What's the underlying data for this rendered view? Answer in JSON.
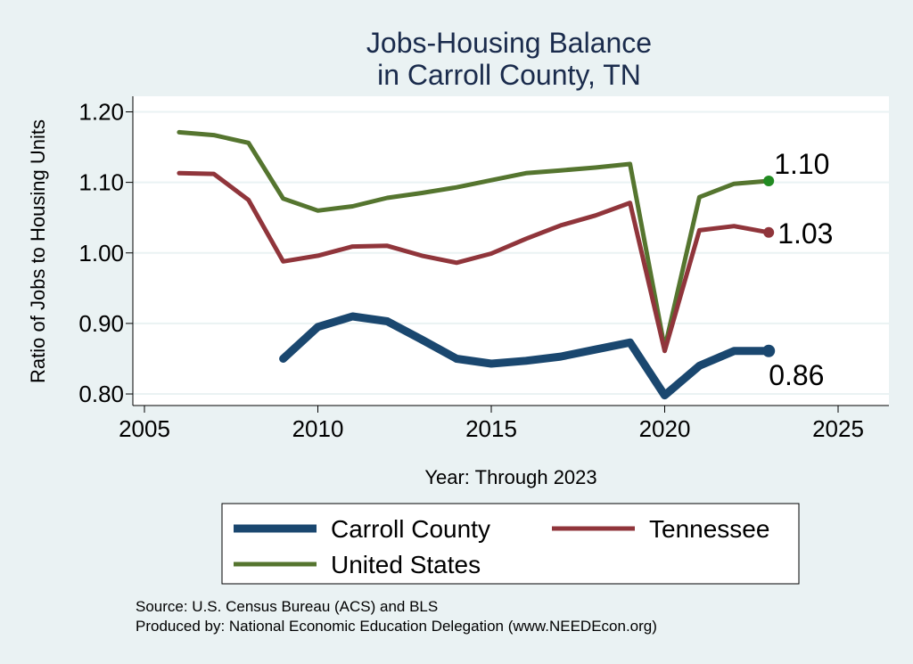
{
  "chart_data": {
    "type": "line",
    "title": [
      "Jobs-Housing Balance",
      "in Carroll County, TN"
    ],
    "xlabel": "Year: Through 2023",
    "ylabel": "Ratio of Jobs to Housing Units",
    "xlim": [
      2005,
      2025
    ],
    "ylim": [
      0.8,
      1.2
    ],
    "xticks": [
      2005,
      2010,
      2015,
      2020,
      2025
    ],
    "xtick_labels": [
      "2005",
      "2010",
      "2015",
      "2020",
      "2025"
    ],
    "yticks": [
      0.8,
      0.9,
      1.0,
      1.1,
      1.2
    ],
    "ytick_labels": [
      "0.80",
      "0.90",
      "1.00",
      "1.10",
      "1.20"
    ],
    "grid": "horizontal",
    "legend_position": "bottom",
    "series": [
      {
        "name": "Carroll County",
        "color": "#1a476f",
        "x": [
          2009,
          2010,
          2011,
          2012,
          2013,
          2014,
          2015,
          2016,
          2017,
          2018,
          2019,
          2020,
          2021,
          2022,
          2023
        ],
        "values": [
          0.85,
          0.895,
          0.91,
          0.903,
          0.877,
          0.85,
          0.843,
          0.847,
          0.853,
          0.863,
          0.873,
          0.798,
          0.84,
          0.861,
          0.861
        ],
        "end_label": "0.86"
      },
      {
        "name": "Tennessee",
        "color": "#90353b",
        "x": [
          2006,
          2007,
          2008,
          2009,
          2010,
          2011,
          2012,
          2013,
          2014,
          2015,
          2016,
          2017,
          2018,
          2019,
          2020,
          2021,
          2022,
          2023
        ],
        "values": [
          1.113,
          1.112,
          1.075,
          0.988,
          0.996,
          1.009,
          1.01,
          0.996,
          0.986,
          0.999,
          1.02,
          1.039,
          1.053,
          1.071,
          0.861,
          1.032,
          1.038,
          1.029
        ],
        "end_label": "1.03"
      },
      {
        "name": "United States",
        "color": "#55752f",
        "marker_color": "#228b22",
        "x": [
          2006,
          2007,
          2008,
          2009,
          2010,
          2011,
          2012,
          2013,
          2014,
          2015,
          2016,
          2017,
          2018,
          2019,
          2020,
          2021,
          2022,
          2023
        ],
        "values": [
          1.171,
          1.167,
          1.156,
          1.077,
          1.06,
          1.066,
          1.078,
          1.085,
          1.093,
          1.103,
          1.113,
          1.117,
          1.121,
          1.126,
          0.865,
          1.079,
          1.098,
          1.102
        ],
        "end_label": "1.10"
      }
    ],
    "notes": [
      "Source: U.S. Census Bureau (ACS) and BLS",
      "Produced by: National Economic Education Delegation (www.NEEDEcon.org)"
    ]
  }
}
